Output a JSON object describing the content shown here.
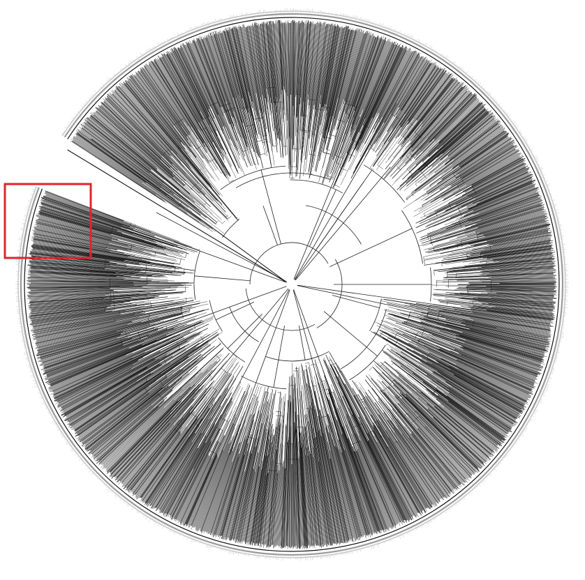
{
  "figure": {
    "kind": "circular-phylogenetic-tree",
    "tip_ring_color": "#9a9a9a",
    "branch_color": "#222222",
    "dense_branch_color": "#111111",
    "background": "#ffffff"
  },
  "highlight": {
    "color": "#e0242c",
    "description_shape": "rectangle"
  }
}
